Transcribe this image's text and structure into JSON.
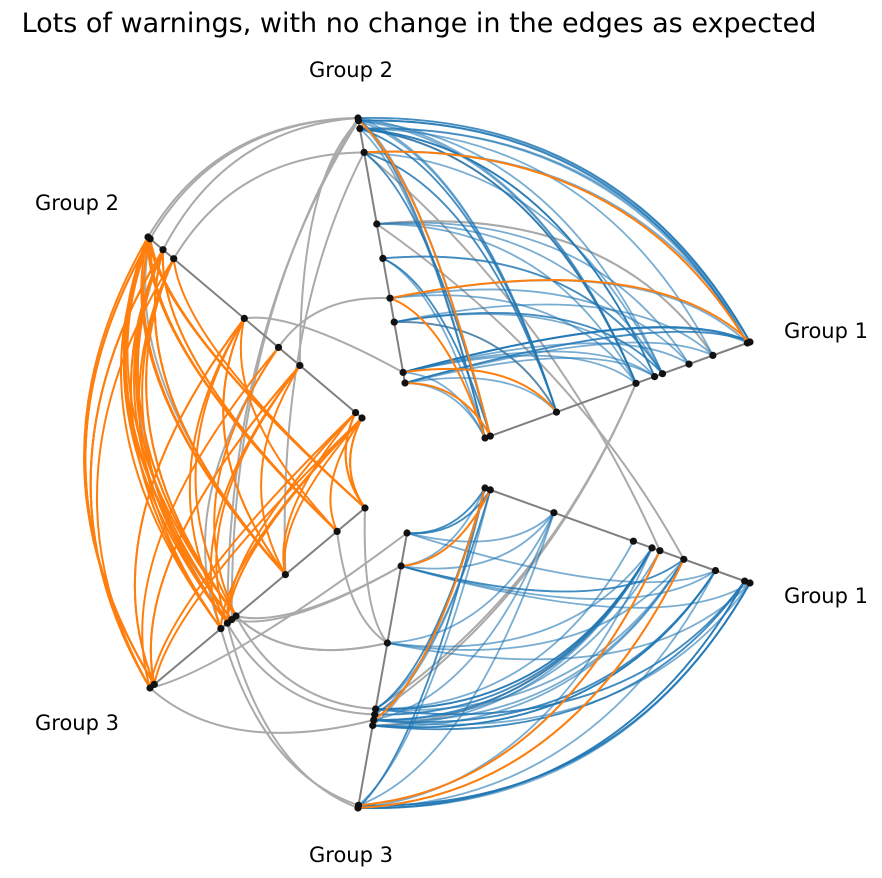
{
  "chart_data": {
    "type": "hive",
    "title": "Lots of warnings, with no change in the edges as expected",
    "colors": {
      "axis": "#808080",
      "node": "#111111",
      "inter_group_edge": "#aaaaaa",
      "group1_edge": "#1f77b4",
      "group2_edge": "#ff7f0e",
      "cross_highlight": "#ff7f0e"
    },
    "groups": [
      "Group 1",
      "Group 2",
      "Group 3"
    ],
    "axis_labels": [
      {
        "key": "g1a",
        "text": "Group 1"
      },
      {
        "key": "g2a",
        "text": "Group 2"
      },
      {
        "key": "g2b",
        "text": "Group 2"
      },
      {
        "key": "g3b",
        "text": "Group 3"
      },
      {
        "key": "g3a",
        "text": "Group 3"
      },
      {
        "key": "g1b",
        "text": "Group 1"
      }
    ],
    "edge_counts_visible": {
      "group1_blue_within": "many",
      "group2_orange_within": "many",
      "inter_group_gray": "many"
    }
  }
}
